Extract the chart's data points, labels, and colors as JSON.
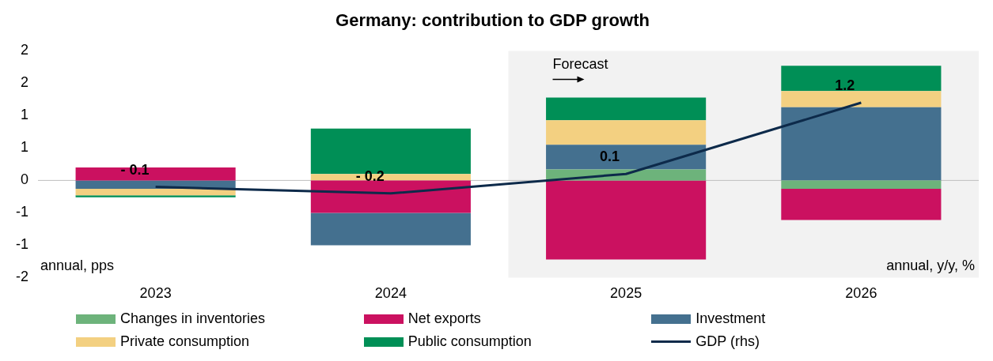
{
  "chart_data": {
    "type": "bar",
    "title": "Germany: contribution to GDP growth",
    "stacked": true,
    "categories": [
      "2023",
      "2024",
      "2025",
      "2026"
    ],
    "series": [
      {
        "name": "Changes in inventories",
        "color": "#6db37b",
        "values": [
          0,
          0,
          0.17,
          -0.13
        ]
      },
      {
        "name": "Net exports",
        "color": "#cb1160",
        "values": [
          0.2,
          -0.5,
          -1.22,
          -0.48
        ]
      },
      {
        "name": "Investment",
        "color": "#44708f",
        "values": [
          -0.13,
          -0.5,
          0.38,
          1.13
        ]
      },
      {
        "name": "Private consumption",
        "color": "#f3d081",
        "values": [
          -0.1,
          0.1,
          0.38,
          0.25
        ]
      },
      {
        "name": "Public consumption",
        "color": "#008f56",
        "values": [
          -0.03,
          0.7,
          0.35,
          0.39
        ]
      },
      {
        "name": "GDP (rhs)",
        "type": "line",
        "color": "#0d2a4a",
        "values": [
          -0.1,
          -0.2,
          0.1,
          1.2
        ],
        "value_labels": [
          "- 0.1",
          "- 0.2",
          "0.1",
          "1.2"
        ]
      }
    ],
    "ylim": [
      -1.5,
      2
    ],
    "yticks": [
      {
        "value": -1.5,
        "label": "-2"
      },
      {
        "value": -1,
        "label": "-1"
      },
      {
        "value": -0.5,
        "label": "-1"
      },
      0,
      {
        "value": 0.5,
        "label": "1"
      },
      1,
      {
        "value": 1.5,
        "label": "2"
      },
      2
    ],
    "bands": [
      {
        "axis": "x",
        "from": "2025",
        "to": "2026",
        "label": "Forecast",
        "color": "#f2f2f2"
      }
    ],
    "ref_lines": [
      {
        "axis": "y",
        "value": 0,
        "color": "#bfbfbf"
      }
    ],
    "annotations": [
      "annual, pps",
      "annual, y/y, %"
    ],
    "legend": "bottom",
    "grid": false,
    "marker": "none",
    "line_style": "solid"
  }
}
